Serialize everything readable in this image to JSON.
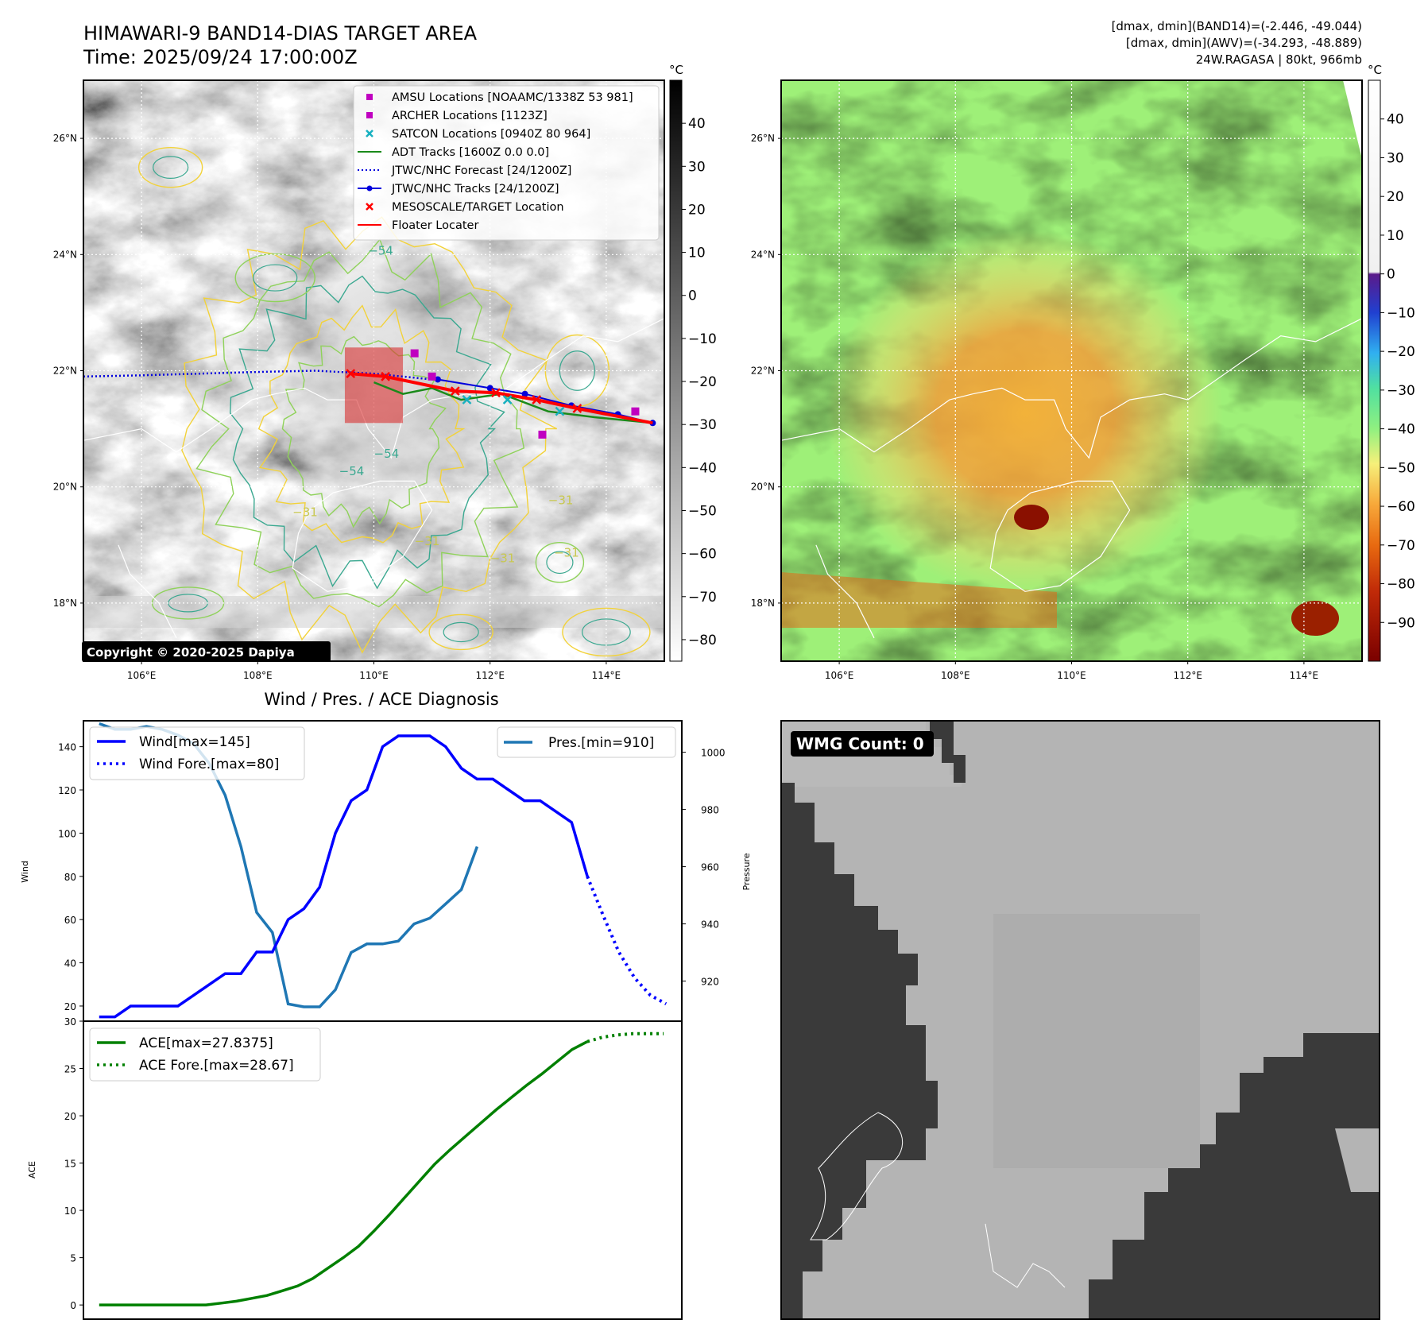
{
  "header": {
    "title_line1": "HIMAWARI-9 BAND14-DIAS TARGET AREA",
    "title_line2": "Time: 2025/09/24 17:00:00Z",
    "info_line1": "[dmax, dmin](BAND14)=(-2.446, -49.044)",
    "info_line2": "[dmax, dmin](AWV)=(-34.293, -48.889)",
    "info_line3": "24W.RAGASA | 80kt, 966mb"
  },
  "map_axes": {
    "lon_ticks": [
      "106°E",
      "108°E",
      "110°E",
      "112°E",
      "114°E"
    ],
    "lat_ticks": [
      "26°N",
      "24°N",
      "22°N",
      "20°N",
      "18°N"
    ],
    "lon_values": [
      106,
      108,
      110,
      112,
      114
    ],
    "lat_values": [
      26,
      24,
      22,
      20,
      18
    ],
    "lon_range": [
      105,
      115
    ],
    "lat_range": [
      17,
      27
    ]
  },
  "ir_panel": {
    "copyright": "Copyright © 2020-2025 Dapiya",
    "colorbar_unit": "°C",
    "colorbar_ticks": [
      "40",
      "30",
      "20",
      "10",
      "0",
      "−10",
      "−20",
      "−30",
      "−40",
      "−50",
      "−60",
      "−70",
      "−80"
    ],
    "colorbar_values": [
      40,
      30,
      20,
      10,
      0,
      -10,
      -20,
      -30,
      -40,
      -50,
      -60,
      -70,
      -80
    ],
    "colorbar_range": [
      -85,
      50
    ],
    "contour_labels": [
      "−54",
      "−54",
      "−31",
      "−31",
      "−31",
      "−31",
      "−31",
      "−54"
    ],
    "legend": [
      {
        "label": "AMSU Locations [NOAAMC/1338Z 53 981]",
        "color": "#c000c0",
        "kind": "square"
      },
      {
        "label": "ARCHER Locations [1123Z]",
        "color": "#c000c0",
        "kind": "square"
      },
      {
        "label": "SATCON Locations [0940Z 80 964]",
        "color": "#17b0c0",
        "kind": "x"
      },
      {
        "label": "ADT Tracks [1600Z 0.0 0.0]",
        "color": "#1a8a1a",
        "kind": "line"
      },
      {
        "label": "JTWC/NHC Forecast [24/1200Z]",
        "color": "#0000dd",
        "kind": "dotted"
      },
      {
        "label": "JTWC/NHC Tracks [24/1200Z]",
        "color": "#0000dd",
        "kind": "line-dot"
      },
      {
        "label": "MESOSCALE/TARGET Location",
        "color": "#ff0000",
        "kind": "x"
      },
      {
        "label": "Floater Locater",
        "color": "#ff0000",
        "kind": "line"
      }
    ],
    "colors": {
      "forecast": "#0000dd",
      "track": "#0000dd",
      "adt": "#1a8a1a",
      "target": "#ff0000",
      "amsu": "#c000c0",
      "satcon": "#17b0c0"
    },
    "jtwc_forecast": [
      [
        105,
        21.9
      ],
      [
        106,
        21.92
      ],
      [
        107,
        21.95
      ],
      [
        108,
        21.98
      ],
      [
        109,
        22.0
      ],
      [
        110,
        21.95
      ],
      [
        111,
        21.85
      ]
    ],
    "jtwc_track": [
      [
        111.1,
        21.85
      ],
      [
        112.0,
        21.7
      ],
      [
        112.6,
        21.6
      ],
      [
        113.4,
        21.4
      ],
      [
        114.2,
        21.25
      ],
      [
        114.8,
        21.1
      ]
    ],
    "adt_track": [
      [
        110.0,
        21.8
      ],
      [
        110.5,
        21.6
      ],
      [
        111.0,
        21.7
      ],
      [
        111.5,
        21.5
      ],
      [
        112.2,
        21.6
      ],
      [
        113.0,
        21.3
      ],
      [
        113.8,
        21.2
      ],
      [
        114.8,
        21.1
      ]
    ],
    "amsu_points": [
      [
        110.7,
        22.3
      ],
      [
        114.5,
        21.3
      ]
    ],
    "archer_points": [
      [
        111.0,
        21.9
      ],
      [
        112.9,
        20.9
      ]
    ],
    "satcon_points": [
      [
        111.6,
        21.5
      ],
      [
        112.3,
        21.5
      ],
      [
        113.2,
        21.3
      ]
    ],
    "target_points": [
      [
        109.6,
        21.95
      ],
      [
        110.2,
        21.9
      ],
      [
        111.4,
        21.65
      ],
      [
        112.1,
        21.62
      ],
      [
        112.8,
        21.5
      ],
      [
        113.5,
        21.35
      ]
    ],
    "floater_box": [
      [
        109.5,
        21.1
      ],
      [
        110.5,
        22.4
      ]
    ]
  },
  "awv_panel": {
    "colorbar_unit": "°C",
    "colorbar_ticks": [
      "40",
      "30",
      "20",
      "10",
      "0",
      "−10",
      "−20",
      "−30",
      "−40",
      "−50",
      "−60",
      "−70",
      "−80",
      "−90"
    ],
    "colorbar_values": [
      40,
      30,
      20,
      10,
      0,
      -10,
      -20,
      -30,
      -40,
      -50,
      -60,
      -70,
      -80,
      -90
    ],
    "colorbar_range": [
      -100,
      50
    ]
  },
  "chart_data": [
    {
      "type": "line",
      "title": "Wind / Pres. / ACE Diagnosis",
      "ylabel": "Wind",
      "y2label": "Pressure",
      "ylim": [
        13,
        152
      ],
      "y2lim": [
        906,
        1011
      ],
      "yticks": [
        20,
        40,
        60,
        80,
        100,
        120,
        140
      ],
      "y2ticks": [
        920,
        940,
        960,
        980,
        1000
      ],
      "series": [
        {
          "name": "Wind[max=145]",
          "axis": "left",
          "style": "solid",
          "color": "#0000ff",
          "values": [
            15,
            15,
            20,
            20,
            20,
            20,
            25,
            30,
            35,
            35,
            45,
            45,
            60,
            65,
            75,
            100,
            115,
            120,
            140,
            145,
            145,
            145,
            140,
            130,
            125,
            125,
            120,
            115,
            115,
            110,
            105,
            80
          ]
        },
        {
          "name": "Wind Fore.[max=80]",
          "axis": "left",
          "style": "dotted",
          "color": "#0000ff",
          "values": [
            80,
            62,
            45,
            33,
            25,
            21
          ]
        },
        {
          "name": "Pres.[min=910]",
          "axis": "right",
          "style": "solid",
          "color": "#1f77b4",
          "values": [
            1010,
            1008,
            1008,
            1009,
            1008,
            1006,
            1003,
            996,
            985,
            967,
            944,
            937,
            912,
            911,
            911,
            917,
            930,
            933,
            933,
            934,
            940,
            942,
            947,
            952,
            967
          ]
        }
      ]
    },
    {
      "type": "line",
      "ylabel": "ACE",
      "ylim": [
        -1.5,
        30
      ],
      "yticks": [
        0,
        5,
        10,
        15,
        20,
        25,
        30
      ],
      "series": [
        {
          "name": "ACE[max=27.8375]",
          "style": "solid",
          "color": "#008000",
          "values": [
            0,
            0,
            0,
            0,
            0,
            0,
            0,
            0,
            0.2,
            0.4,
            0.7,
            1.0,
            1.5,
            2.0,
            2.8,
            3.9,
            5.0,
            6.2,
            7.8,
            9.5,
            11.3,
            13.1,
            14.9,
            16.4,
            17.8,
            19.2,
            20.6,
            21.9,
            23.2,
            24.4,
            25.7,
            27.0,
            27.8375
          ]
        },
        {
          "name": "ACE Fore.[max=28.67]",
          "style": "dotted",
          "color": "#008000",
          "values": [
            27.8375,
            28.3,
            28.55,
            28.67,
            28.67,
            28.67
          ]
        }
      ]
    }
  ],
  "wmg_panel": {
    "badge": "WMG Count: 0"
  }
}
